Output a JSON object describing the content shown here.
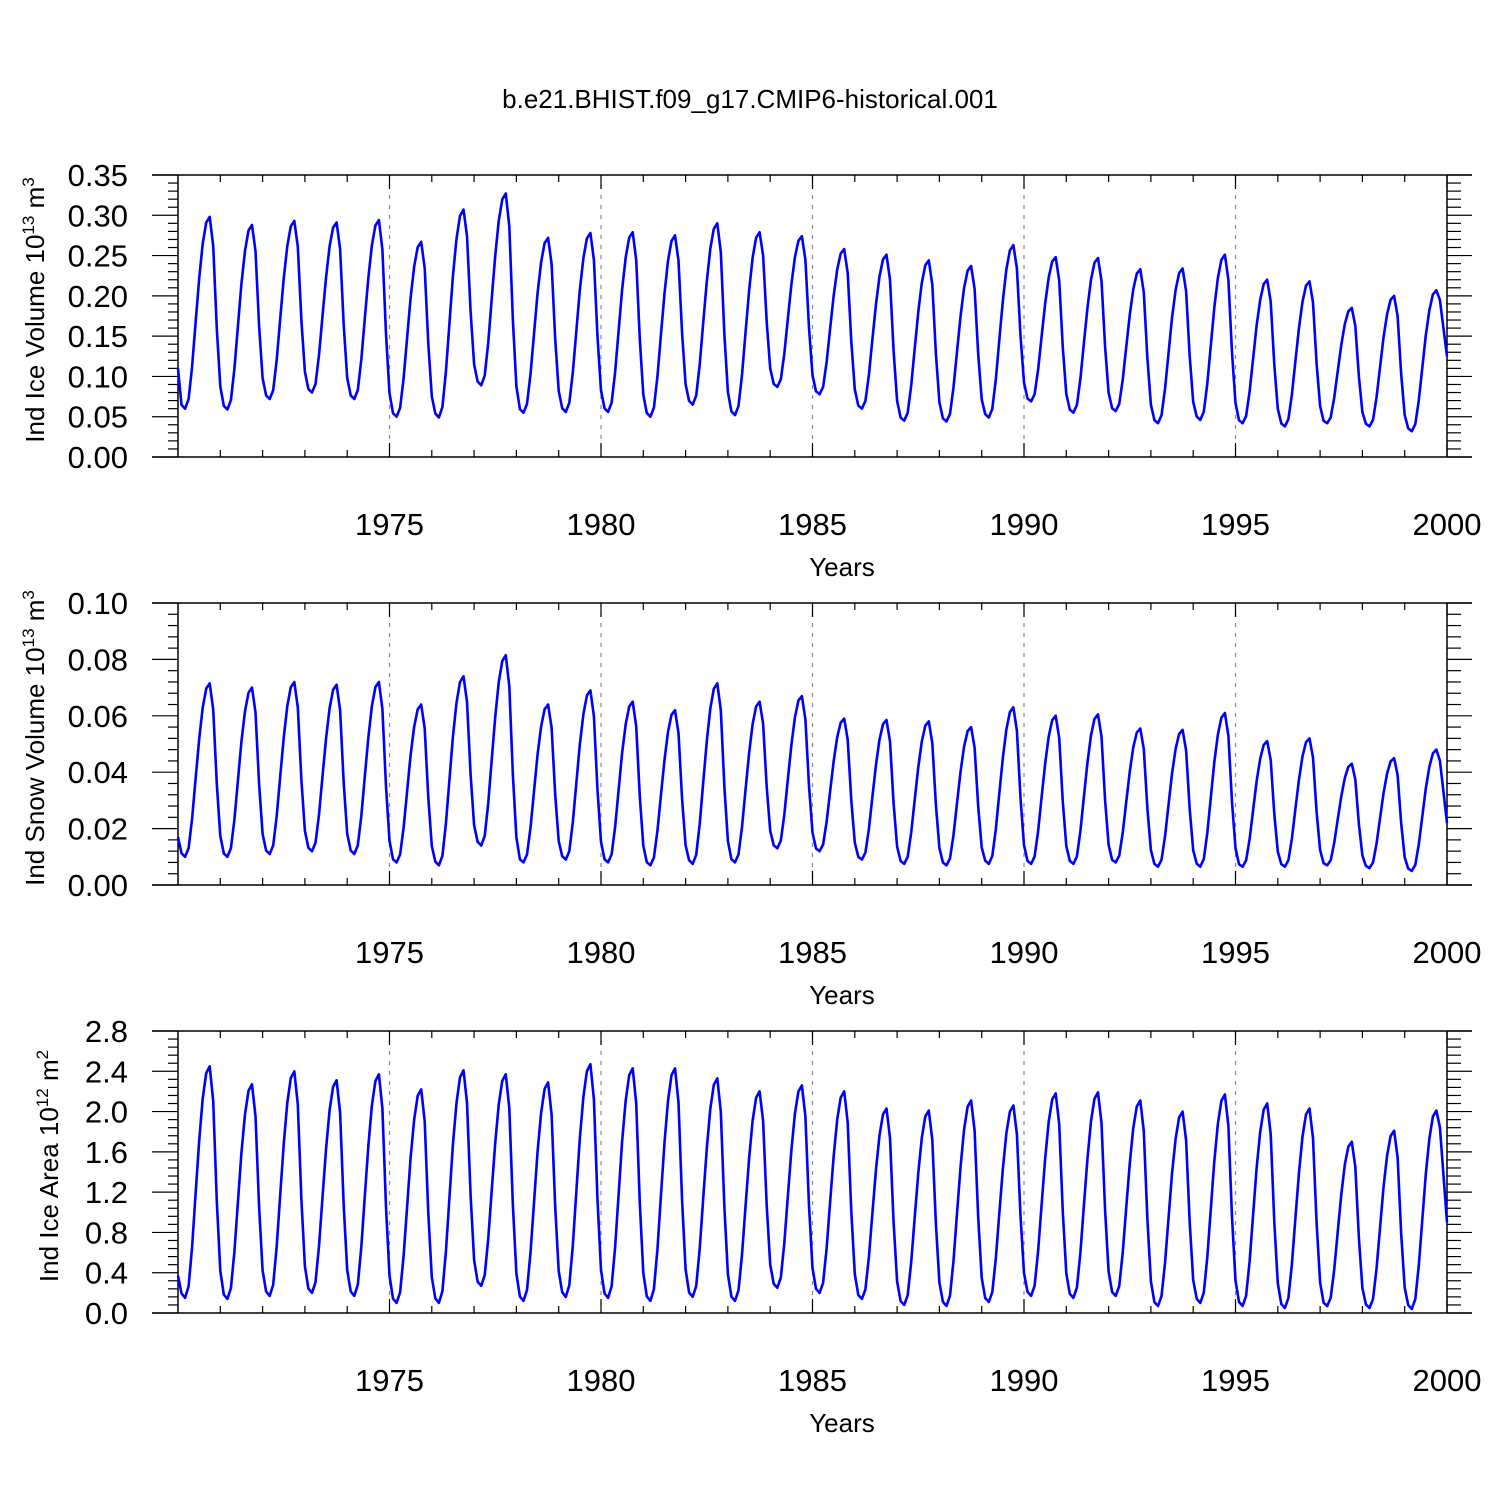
{
  "title": "b.e21.BHIST.f09_g17.CMIP6-historical.001",
  "colors": {
    "series": "#0000ff",
    "axis": "#000000",
    "grid": "#888888",
    "background": "#ffffff"
  },
  "chart_data": [
    {
      "type": "line",
      "id": "ice-volume",
      "title": "",
      "xlabel": "Years",
      "ylabel_main": "Ind Ice Volume 10",
      "ylabel_sup": "13",
      "ylabel_unit": " m",
      "ylabel_unit_sup": "3",
      "xlim": [
        1970.0,
        2000.0
      ],
      "ylim": [
        0.0,
        0.35
      ],
      "xticks": [
        1975,
        1980,
        1985,
        1990,
        1995,
        2000
      ],
      "xtick_labels": [
        "1975",
        "1980",
        "1985",
        "1990",
        "1995",
        "2000"
      ],
      "yticks": [
        0.0,
        0.05,
        0.1,
        0.15,
        0.2,
        0.25,
        0.3,
        0.35
      ],
      "ytick_labels": [
        "0.00",
        "0.05",
        "0.10",
        "0.15",
        "0.20",
        "0.25",
        "0.30",
        "0.35"
      ],
      "grid_x": [
        1975,
        1980,
        1985,
        1990,
        1995
      ],
      "annual_peaks": [
        0.298,
        0.288,
        0.293,
        0.291,
        0.294,
        0.267,
        0.307,
        0.327,
        0.272,
        0.278,
        0.279,
        0.275,
        0.29,
        0.279,
        0.274,
        0.258,
        0.251,
        0.244,
        0.237,
        0.263,
        0.248,
        0.247,
        0.233,
        0.234,
        0.251,
        0.22,
        0.218,
        0.185,
        0.2,
        0.207
      ],
      "annual_minima": [
        0.06,
        0.059,
        0.072,
        0.08,
        0.072,
        0.05,
        0.049,
        0.089,
        0.055,
        0.056,
        0.056,
        0.05,
        0.065,
        0.052,
        0.087,
        0.078,
        0.06,
        0.045,
        0.044,
        0.049,
        0.069,
        0.055,
        0.057,
        0.042,
        0.046,
        0.042,
        0.038,
        0.042,
        0.038,
        0.032
      ],
      "start_value": 0.11,
      "end_value": 0.125
    },
    {
      "type": "line",
      "id": "snow-volume",
      "title": "",
      "xlabel": "Years",
      "ylabel_main": "Ind Snow Volume 10",
      "ylabel_sup": "13",
      "ylabel_unit": " m",
      "ylabel_unit_sup": "3",
      "xlim": [
        1970.0,
        2000.0
      ],
      "ylim": [
        0.0,
        0.1
      ],
      "xticks": [
        1975,
        1980,
        1985,
        1990,
        1995,
        2000
      ],
      "xtick_labels": [
        "1975",
        "1980",
        "1985",
        "1990",
        "1995",
        "2000"
      ],
      "yticks": [
        0.0,
        0.02,
        0.04,
        0.06,
        0.08,
        0.1
      ],
      "ytick_labels": [
        "0.00",
        "0.02",
        "0.04",
        "0.06",
        "0.08",
        "0.10"
      ],
      "grid_x": [
        1975,
        1980,
        1985,
        1990,
        1995
      ],
      "annual_peaks": [
        0.0715,
        0.07,
        0.072,
        0.071,
        0.072,
        0.064,
        0.074,
        0.0815,
        0.064,
        0.069,
        0.065,
        0.062,
        0.0715,
        0.065,
        0.067,
        0.059,
        0.0585,
        0.058,
        0.056,
        0.063,
        0.06,
        0.0605,
        0.0555,
        0.055,
        0.061,
        0.051,
        0.052,
        0.043,
        0.045,
        0.048
      ],
      "annual_minima": [
        0.01,
        0.01,
        0.011,
        0.012,
        0.011,
        0.008,
        0.007,
        0.014,
        0.008,
        0.009,
        0.008,
        0.007,
        0.0075,
        0.008,
        0.013,
        0.012,
        0.009,
        0.0075,
        0.007,
        0.0075,
        0.0075,
        0.0075,
        0.008,
        0.0065,
        0.0065,
        0.0065,
        0.0065,
        0.007,
        0.006,
        0.005
      ],
      "start_value": 0.017,
      "end_value": 0.022
    },
    {
      "type": "line",
      "id": "ice-area",
      "title": "",
      "xlabel": "Years",
      "ylabel_main": "Ind Ice Area 10",
      "ylabel_sup": "12",
      "ylabel_unit": " m",
      "ylabel_unit_sup": "2",
      "xlim": [
        1970.0,
        2000.0
      ],
      "ylim": [
        0.0,
        2.8
      ],
      "xticks": [
        1975,
        1980,
        1985,
        1990,
        1995,
        2000
      ],
      "xtick_labels": [
        "1975",
        "1980",
        "1985",
        "1990",
        "1995",
        "2000"
      ],
      "yticks": [
        0.0,
        0.4,
        0.8,
        1.2,
        1.6,
        2.0,
        2.4,
        2.8
      ],
      "ytick_labels": [
        "0.0",
        "0.4",
        "0.8",
        "1.2",
        "1.6",
        "2.0",
        "2.4",
        "2.8"
      ],
      "grid_x": [
        1975,
        1980,
        1985,
        1990,
        1995
      ],
      "annual_peaks": [
        2.45,
        2.27,
        2.4,
        2.31,
        2.37,
        2.22,
        2.41,
        2.37,
        2.29,
        2.47,
        2.43,
        2.43,
        2.33,
        2.2,
        2.26,
        2.2,
        2.03,
        2.01,
        2.11,
        2.06,
        2.18,
        2.19,
        2.11,
        2.0,
        2.17,
        2.08,
        2.03,
        1.7,
        1.81,
        2.01
      ],
      "annual_minima": [
        0.15,
        0.14,
        0.17,
        0.2,
        0.17,
        0.1,
        0.1,
        0.27,
        0.12,
        0.16,
        0.15,
        0.12,
        0.16,
        0.12,
        0.25,
        0.2,
        0.14,
        0.08,
        0.07,
        0.11,
        0.17,
        0.15,
        0.17,
        0.07,
        0.1,
        0.07,
        0.05,
        0.07,
        0.05,
        0.04
      ],
      "start_value": 0.37,
      "end_value": 0.9
    }
  ]
}
